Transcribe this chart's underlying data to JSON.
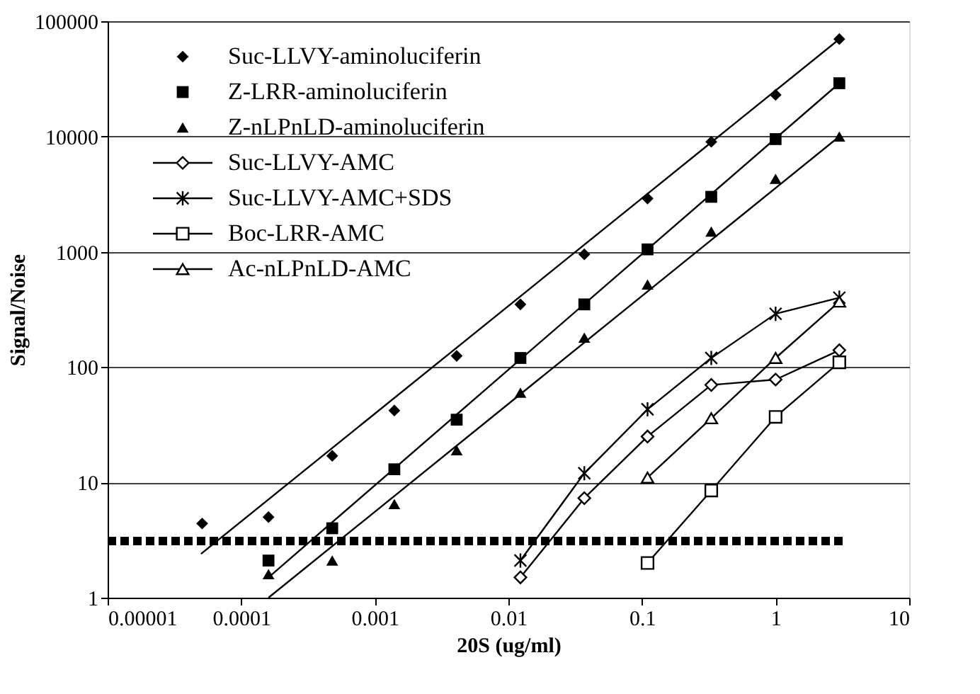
{
  "chart_data": {
    "type": "scatter",
    "xlabel": "20S (ug/ml)",
    "ylabel": "Signal/Noise",
    "log": "xy",
    "grid": "y",
    "legend": "top left",
    "xlim": [
      1e-05,
      10
    ],
    "xticks": [
      {
        "value": 1e-05,
        "label": "0.00001"
      },
      0.0001,
      0.001,
      0.01,
      0.1,
      1,
      10
    ],
    "ylim": [
      1,
      100000
    ],
    "yticks": [
      1,
      10,
      100,
      1000,
      10000,
      100000
    ],
    "series": [
      {
        "name": "Suc-LLVY-aminoluciferin",
        "marker": "diamond",
        "color": "#000000",
        "x": [
          5.1e-05,
          0.00016,
          0.00048,
          0.0014,
          0.0041,
          0.0123,
          0.037,
          0.11,
          0.33,
          1,
          3
        ],
        "values": [
          4.4,
          5,
          17,
          42,
          125,
          350,
          950,
          2900,
          9000,
          23000,
          70000
        ]
      },
      {
        "name": "Z-LRR-aminoluciferin",
        "marker": "square",
        "color": "#000000",
        "x": [
          0.00016,
          0.00048,
          0.0014,
          0.0041,
          0.0123,
          0.037,
          0.11,
          0.33,
          1,
          3
        ],
        "values": [
          2.1,
          4,
          13,
          35,
          120,
          350,
          1050,
          3000,
          9500,
          29000
        ]
      },
      {
        "name": "Z-nLPnLD-aminoluciferin",
        "marker": "triangle",
        "color": "#000000",
        "x": [
          0.00016,
          0.00048,
          0.0014,
          0.0041,
          0.0123,
          0.037,
          0.11,
          0.33,
          1,
          3
        ],
        "values": [
          1.6,
          2.1,
          6.5,
          19,
          60,
          180,
          520,
          1500,
          4300,
          10000
        ]
      },
      {
        "name": "Suc-LLVY-AMC",
        "type": "line",
        "marker": "diamond",
        "color": "#000000",
        "x": [
          0.0123,
          0.037,
          0.11,
          0.33,
          1,
          3
        ],
        "values": [
          1.5,
          7.3,
          25,
          70,
          78,
          140
        ]
      },
      {
        "name": "Suc-LLVY-AMC+SDS",
        "type": "line",
        "marker": "cross",
        "color": "#000000",
        "x": [
          0.0123,
          0.037,
          0.11,
          0.33,
          1,
          3
        ],
        "values": [
          2.1,
          12,
          43,
          120,
          290,
          400
        ]
      },
      {
        "name": "Boc-LRR-AMC",
        "type": "line",
        "marker": "square",
        "color": "#000000",
        "x": [
          0.11,
          0.33,
          1,
          3
        ],
        "values": [
          2.0,
          8.5,
          37,
          110
        ]
      },
      {
        "name": "Ac-nLPnLD-AMC",
        "type": "line",
        "marker": "triangle",
        "color": "#000000",
        "x": [
          0.11,
          0.33,
          1,
          3
        ],
        "values": [
          11,
          36,
          120,
          370
        ]
      },
      {
        "type": "line",
        "marker": "none",
        "color": "#000000",
        "x": [
          5e-05,
          3
        ],
        "values": [
          2.4,
          70000
        ]
      },
      {
        "type": "line",
        "marker": "none",
        "color": "#000000",
        "x": [
          0.00016,
          3
        ],
        "values": [
          1.5,
          29000
        ]
      },
      {
        "type": "line",
        "marker": "none",
        "color": "#000000",
        "x": [
          0.00016,
          3
        ],
        "values": [
          1.0,
          10000
        ]
      },
      {
        "type": "line",
        "marker": "none",
        "line_style": "dashed",
        "color": "#000000",
        "x": [
          1e-05,
          3.35
        ],
        "values": [
          3.1,
          3.1
        ]
      }
    ]
  }
}
